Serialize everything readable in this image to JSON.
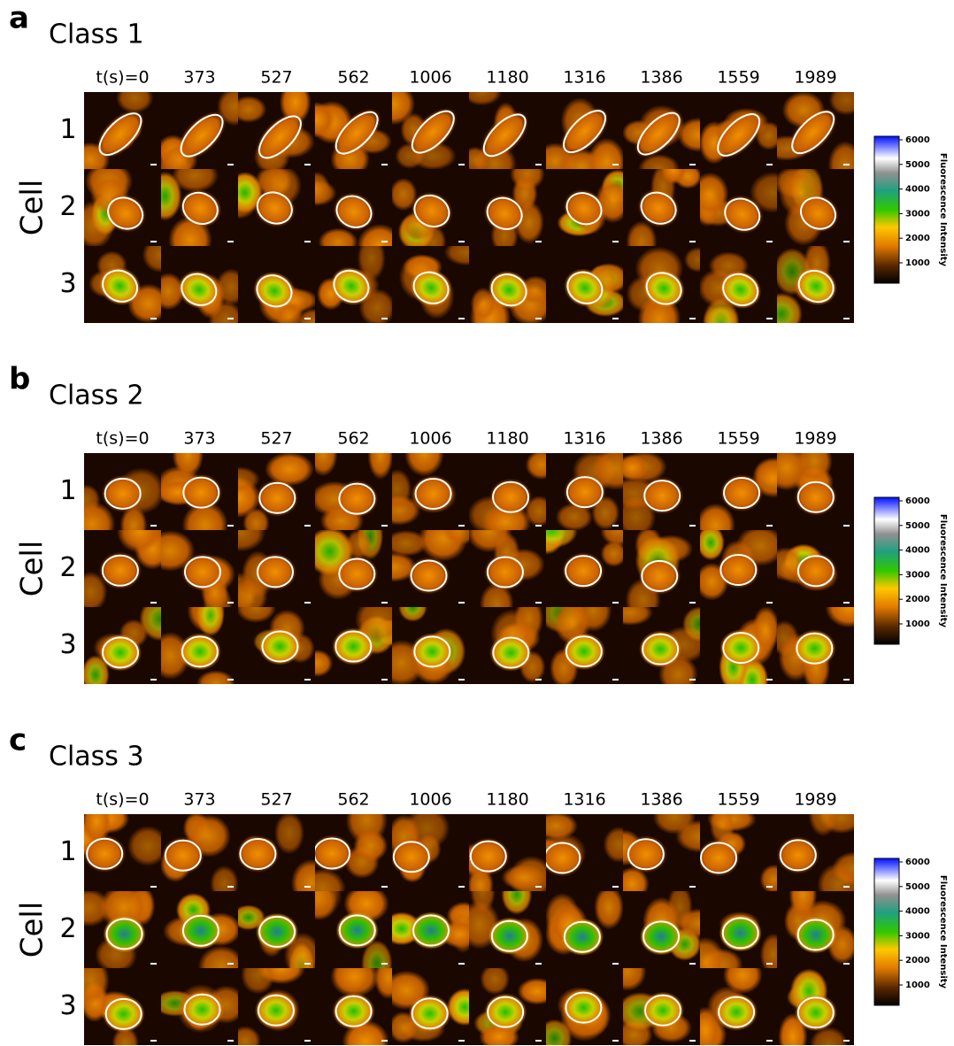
{
  "panels": [
    {
      "letter": "a",
      "title": "Class 1",
      "times": [
        "t(s)=0",
        "373",
        "527",
        "562",
        "1006",
        "1180",
        "1316",
        "1386",
        "1559",
        "1989"
      ],
      "rows": [
        "1",
        "2",
        "3"
      ],
      "row_axis": "Cell",
      "colorbar": {
        "ticks": [
          6000,
          5000,
          4000,
          3000,
          2000,
          1000
        ],
        "label": "Fluorescence Intensity"
      }
    },
    {
      "letter": "b",
      "title": "Class 2",
      "times": [
        "t(s)=0",
        "373",
        "527",
        "562",
        "1006",
        "1180",
        "1316",
        "1386",
        "1559",
        "1989"
      ],
      "rows": [
        "1",
        "2",
        "3"
      ],
      "row_axis": "Cell",
      "colorbar": {
        "ticks": [
          6000,
          5000,
          4000,
          3000,
          2000,
          1000
        ],
        "label": "Fluorescence Intensity"
      }
    },
    {
      "letter": "c",
      "title": "Class 3",
      "times": [
        "t(s)=0",
        "373",
        "527",
        "562",
        "1006",
        "1180",
        "1316",
        "1386",
        "1559",
        "1989"
      ],
      "rows": [
        "1",
        "2",
        "3"
      ],
      "row_axis": "Cell",
      "colorbar": {
        "ticks": [
          6000,
          5000,
          4000,
          3000,
          2000,
          1000
        ],
        "label": "Fluorescence Intensity"
      }
    }
  ]
}
